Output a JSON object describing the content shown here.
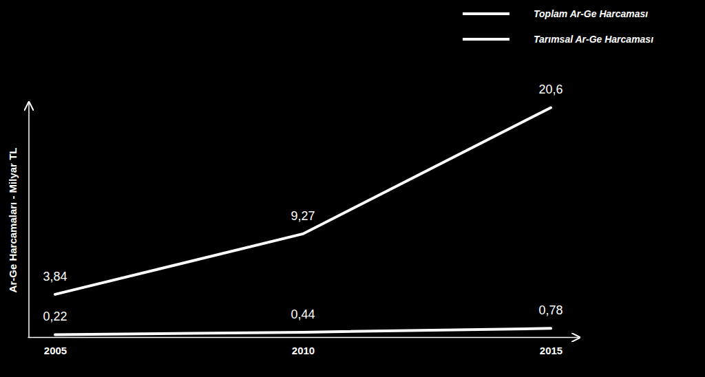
{
  "chart_data": {
    "type": "line",
    "y_label": "Ar-Ge Harcamaları  - Milyar TL",
    "categories": [
      "2005",
      "2010",
      "2015"
    ],
    "series": [
      {
        "name": "Toplam Ar-Ge Harcaması",
        "color": "#ffffff",
        "values": [
          3.84,
          9.27,
          20.6
        ],
        "value_labels": [
          "3,84",
          "9,27",
          "20,6"
        ]
      },
      {
        "name": "Tarımsal Ar-Ge Harcaması",
        "color": "#ffffff",
        "values": [
          0.22,
          0.44,
          0.78
        ],
        "value_labels": [
          "0,22",
          "0,44",
          "0,78"
        ]
      }
    ],
    "ylim": [
      0,
      21
    ],
    "yticks": [],
    "tick_labels": "x",
    "data_labels": true,
    "legend": "top-right",
    "grid": false
  }
}
